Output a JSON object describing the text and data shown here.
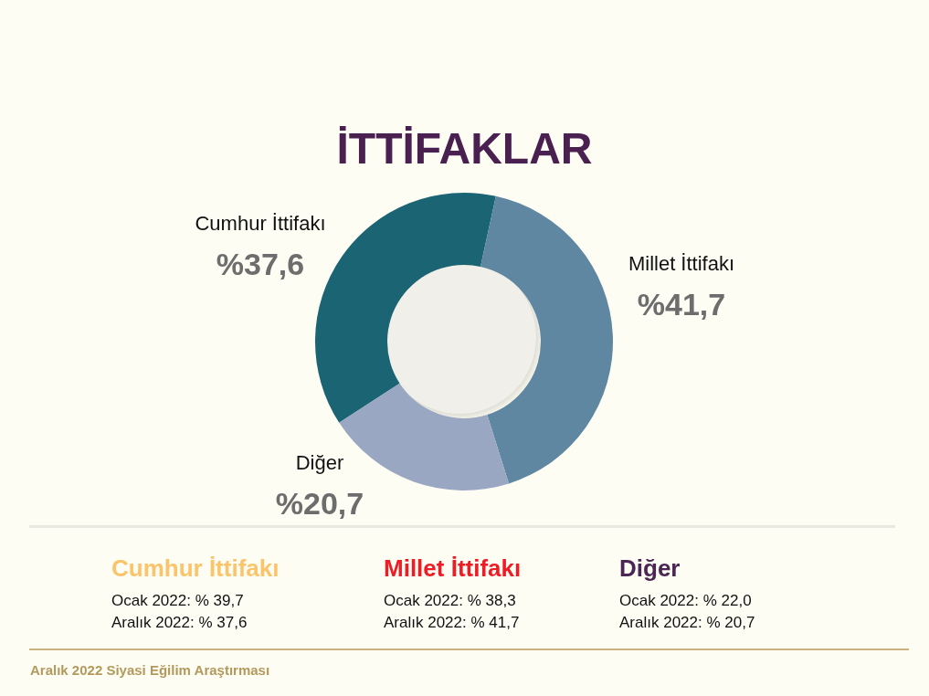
{
  "chart_data": {
    "type": "donut",
    "title": "İTTİFAKLAR",
    "categories": [
      "Cumhur İttifakı",
      "Millet İttifakı",
      "Diğer"
    ],
    "values": [
      37.6,
      41.7,
      20.7
    ],
    "colors": [
      "#1b6474",
      "#5f87a1",
      "#9aa7c3"
    ],
    "value_labels": [
      "%37,6",
      "%41,7",
      "%20,7"
    ],
    "annotations": [
      "Cumhur İttifakı",
      "Ocak 2022: % 39,7",
      "Aralık 2022: % 37,6",
      "Millet İttifakı",
      "Ocak 2022: % 38,3",
      "Aralık 2022: % 41,7",
      "Diğer",
      "Ocak 2022: % 22,0",
      "Aralık 2022: % 20,7",
      "Aralık 2022 Siyasi Eğilim Araştırması"
    ]
  }
}
